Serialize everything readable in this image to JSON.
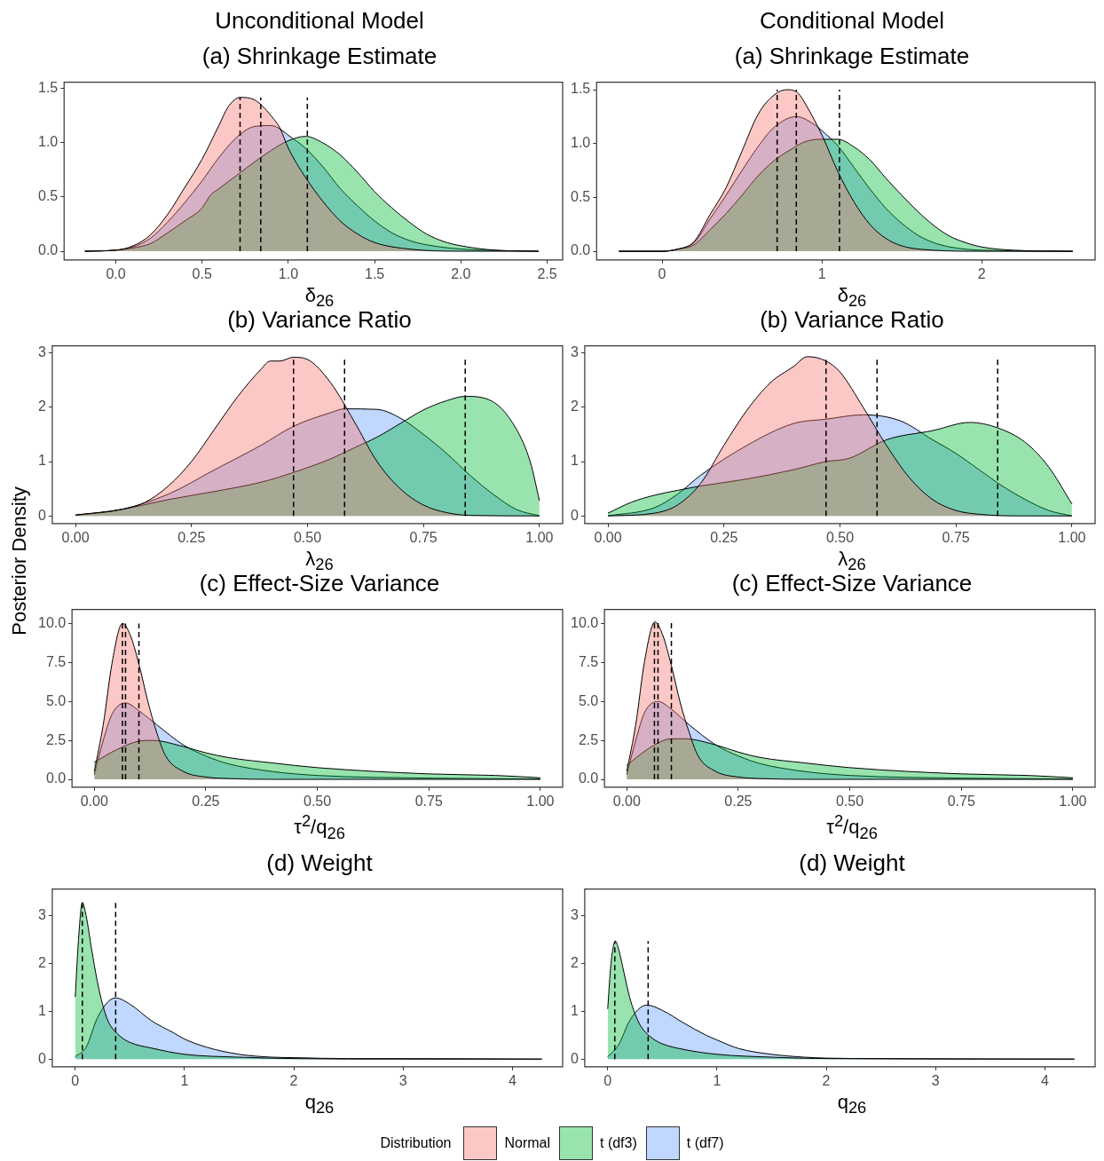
{
  "chart_data": [
    {
      "type": "area",
      "subtitle": "Unconditional Model",
      "title": "(a) Shrinkage Estimate",
      "xlabel": "δ$_{26}$",
      "legend": "bottom",
      "legend_title": "Distribution",
      "xlim": [
        -0.3,
        2.59
      ],
      "ylim": [
        -0.08,
        1.56
      ],
      "xticks": [
        {
          "value": 0,
          "label": "0.0"
        },
        0.5,
        {
          "value": 1,
          "label": "1.0"
        },
        1.5,
        {
          "value": 2,
          "label": "2.0"
        },
        2.5
      ],
      "yticks": [
        {
          "value": 0,
          "label": "0.0"
        },
        0.5,
        {
          "value": 1,
          "label": "1.0"
        },
        1.5
      ],
      "ref_lines": [
        {
          "axis": "x",
          "value": 0.72,
          "color": "#000000",
          "line_style": "dashed"
        },
        {
          "axis": "x",
          "value": 0.84,
          "color": "#000000",
          "line_style": "dashed"
        },
        {
          "axis": "x",
          "value": 1.11,
          "color": "#000000",
          "line_style": "dashed"
        }
      ],
      "series": [
        {
          "name": "Normal",
          "color": "#f8766d",
          "x": [
            -0.18,
            0,
            0.1,
            0.2,
            0.3,
            0.4,
            0.5,
            0.6,
            0.65,
            0.72,
            0.8,
            0.85,
            0.9,
            0.95,
            1.0,
            1.1,
            1.2,
            1.3,
            1.4,
            1.5,
            1.7,
            2.0,
            2.45
          ],
          "values": [
            0,
            0.01,
            0.05,
            0.15,
            0.34,
            0.59,
            0.85,
            1.17,
            1.33,
            1.42,
            1.4,
            1.34,
            1.25,
            1.14,
            0.95,
            0.68,
            0.46,
            0.28,
            0.16,
            0.08,
            0.02,
            0,
            0
          ]
        },
        {
          "name": "t (df3)",
          "color": "#00ba38",
          "x": [
            -0.18,
            0,
            0.1,
            0.2,
            0.3,
            0.4,
            0.5,
            0.55,
            0.6,
            0.7,
            0.8,
            0.9,
            1.0,
            1.1,
            1.2,
            1.3,
            1.4,
            1.5,
            1.6,
            1.7,
            1.8,
            1.9,
            2.0,
            2.2,
            2.45
          ],
          "values": [
            0,
            0.01,
            0.03,
            0.07,
            0.17,
            0.28,
            0.4,
            0.52,
            0.58,
            0.7,
            0.82,
            0.93,
            1.02,
            1.06,
            1.0,
            0.89,
            0.73,
            0.55,
            0.4,
            0.27,
            0.16,
            0.09,
            0.05,
            0.01,
            0
          ]
        },
        {
          "name": "t (df7)",
          "color": "#619cff",
          "x": [
            -0.18,
            0,
            0.1,
            0.2,
            0.3,
            0.4,
            0.5,
            0.6,
            0.7,
            0.8,
            0.9,
            0.95,
            1.0,
            1.1,
            1.2,
            1.3,
            1.4,
            1.5,
            1.6,
            1.7,
            1.8,
            2.0,
            2.45
          ],
          "values": [
            0,
            0.01,
            0.04,
            0.12,
            0.27,
            0.45,
            0.65,
            0.87,
            1.05,
            1.15,
            1.16,
            1.13,
            1.07,
            0.95,
            0.78,
            0.58,
            0.42,
            0.28,
            0.17,
            0.1,
            0.06,
            0.02,
            0
          ]
        }
      ]
    },
    {
      "type": "area",
      "subtitle": "Conditional Model",
      "title": "(a) Shrinkage Estimate",
      "xlabel": "δ$_{26}$",
      "xlim": [
        -0.41,
        2.71
      ],
      "ylim": [
        -0.08,
        1.57
      ],
      "xticks": [
        0,
        1,
        2
      ],
      "yticks": [
        {
          "value": 0,
          "label": "0.0"
        },
        0.5,
        {
          "value": 1,
          "label": "1.0"
        },
        1.5
      ],
      "ref_lines": [
        {
          "axis": "x",
          "value": 0.72,
          "color": "#000000",
          "line_style": "dashed"
        },
        {
          "axis": "x",
          "value": 0.84,
          "color": "#000000",
          "line_style": "dashed"
        },
        {
          "axis": "x",
          "value": 1.11,
          "color": "#000000",
          "line_style": "dashed"
        }
      ],
      "series": [
        {
          "color": "#f8766d",
          "x": [
            -0.27,
            0,
            0.1,
            0.2,
            0.3,
            0.4,
            0.5,
            0.6,
            0.7,
            0.78,
            0.85,
            0.9,
            1.0,
            1.1,
            1.2,
            1.3,
            1.4,
            1.5,
            1.7,
            2.0,
            2.57
          ],
          "values": [
            0,
            0,
            0.02,
            0.09,
            0.34,
            0.59,
            0.93,
            1.27,
            1.45,
            1.5,
            1.47,
            1.36,
            1.08,
            0.74,
            0.46,
            0.25,
            0.12,
            0.05,
            0.01,
            0,
            0
          ]
        },
        {
          "color": "#00ba38",
          "x": [
            -0.27,
            0,
            0.1,
            0.2,
            0.3,
            0.4,
            0.5,
            0.6,
            0.7,
            0.8,
            0.9,
            1.0,
            1.1,
            1.2,
            1.3,
            1.4,
            1.5,
            1.6,
            1.7,
            1.8,
            1.9,
            2.0,
            2.2,
            2.57
          ],
          "values": [
            0,
            0,
            0.02,
            0.06,
            0.2,
            0.35,
            0.52,
            0.7,
            0.84,
            0.94,
            1.02,
            1.04,
            1.04,
            0.97,
            0.85,
            0.68,
            0.52,
            0.37,
            0.24,
            0.14,
            0.08,
            0.04,
            0.01,
            0
          ]
        },
        {
          "color": "#619cff",
          "x": [
            -0.27,
            0,
            0.1,
            0.2,
            0.3,
            0.4,
            0.5,
            0.6,
            0.7,
            0.84,
            0.95,
            1.0,
            1.1,
            1.2,
            1.3,
            1.4,
            1.5,
            1.6,
            1.7,
            1.8,
            2.0,
            2.57
          ],
          "values": [
            0,
            0,
            0.02,
            0.08,
            0.3,
            0.52,
            0.75,
            0.97,
            1.15,
            1.25,
            1.18,
            1.12,
            0.98,
            0.78,
            0.58,
            0.4,
            0.26,
            0.15,
            0.08,
            0.04,
            0.01,
            0
          ]
        }
      ]
    },
    {
      "type": "area",
      "title": "(b) Variance Ratio",
      "xlabel": "λ$_{26}$",
      "xlim": [
        -0.05,
        1.05
      ],
      "ylim": [
        -0.14,
        3.13
      ],
      "xticks": [
        {
          "value": 0,
          "label": "0.00"
        },
        0.25,
        {
          "value": 0.5,
          "label": "0.50"
        },
        0.75,
        {
          "value": 1,
          "label": "1.00"
        }
      ],
      "yticks": [
        0,
        1,
        2,
        3
      ],
      "ref_lines": [
        {
          "axis": "x",
          "value": 0.47,
          "color": "#000000",
          "line_style": "dashed"
        },
        {
          "axis": "x",
          "value": 0.58,
          "color": "#000000",
          "line_style": "dashed"
        },
        {
          "axis": "x",
          "value": 0.84,
          "color": "#000000",
          "line_style": "dashed"
        }
      ],
      "series": [
        {
          "color": "#f8766d",
          "x": [
            0,
            0.1,
            0.15,
            0.2,
            0.25,
            0.3,
            0.35,
            0.4,
            0.42,
            0.44,
            0.47,
            0.5,
            0.55,
            0.6,
            0.65,
            0.7,
            0.75,
            0.8,
            0.85,
            1.0
          ],
          "values": [
            0.02,
            0.12,
            0.25,
            0.55,
            1.0,
            1.6,
            2.2,
            2.7,
            2.85,
            2.85,
            2.92,
            2.88,
            2.45,
            1.75,
            1.0,
            0.5,
            0.2,
            0.06,
            0.01,
            0
          ]
        },
        {
          "color": "#00ba38",
          "x": [
            0,
            0.1,
            0.2,
            0.3,
            0.4,
            0.47,
            0.55,
            0.6,
            0.65,
            0.7,
            0.75,
            0.8,
            0.84,
            0.9,
            0.95,
            0.98,
            1.0
          ],
          "values": [
            0.01,
            0.12,
            0.3,
            0.45,
            0.62,
            0.8,
            1.05,
            1.25,
            1.45,
            1.7,
            1.95,
            2.12,
            2.2,
            2.1,
            1.6,
            1.0,
            0.28
          ]
        },
        {
          "color": "#619cff",
          "x": [
            0,
            0.1,
            0.2,
            0.3,
            0.4,
            0.47,
            0.55,
            0.58,
            0.65,
            0.7,
            0.75,
            0.8,
            0.85,
            0.9,
            0.95,
            1.0
          ],
          "values": [
            0.01,
            0.12,
            0.4,
            0.85,
            1.3,
            1.65,
            1.9,
            1.97,
            1.96,
            1.8,
            1.5,
            1.15,
            0.75,
            0.4,
            0.12,
            0
          ]
        }
      ]
    },
    {
      "type": "area",
      "title": "(b) Variance Ratio",
      "xlabel": "λ$_{26}$",
      "xlim": [
        -0.05,
        1.05
      ],
      "ylim": [
        -0.14,
        3.13
      ],
      "xticks": [
        {
          "value": 0,
          "label": "0.00"
        },
        0.25,
        {
          "value": 0.5,
          "label": "0.50"
        },
        0.75,
        {
          "value": 1,
          "label": "1.00"
        }
      ],
      "yticks": [
        0,
        1,
        2,
        3
      ],
      "ref_lines": [
        {
          "axis": "x",
          "value": 0.47,
          "color": "#000000",
          "line_style": "dashed"
        },
        {
          "axis": "x",
          "value": 0.58,
          "color": "#000000",
          "line_style": "dashed"
        },
        {
          "axis": "x",
          "value": 0.84,
          "color": "#000000",
          "line_style": "dashed"
        }
      ],
      "series": [
        {
          "color": "#f8766d",
          "x": [
            0,
            0.1,
            0.15,
            0.2,
            0.25,
            0.3,
            0.35,
            0.4,
            0.43,
            0.47,
            0.5,
            0.55,
            0.6,
            0.65,
            0.7,
            0.75,
            0.8,
            0.9,
            1.0
          ],
          "values": [
            0,
            0.05,
            0.2,
            0.6,
            1.3,
            1.95,
            2.45,
            2.75,
            2.93,
            2.85,
            2.65,
            2.0,
            1.3,
            0.7,
            0.3,
            0.1,
            0.03,
            0,
            0
          ]
        },
        {
          "color": "#00ba38",
          "x": [
            0,
            0.05,
            0.1,
            0.15,
            0.2,
            0.3,
            0.4,
            0.47,
            0.52,
            0.6,
            0.7,
            0.78,
            0.84,
            0.9,
            0.95,
            1.0
          ],
          "values": [
            0.05,
            0.25,
            0.38,
            0.47,
            0.55,
            0.68,
            0.85,
            1.0,
            1.06,
            1.4,
            1.57,
            1.72,
            1.62,
            1.35,
            0.9,
            0.22
          ]
        },
        {
          "color": "#619cff",
          "x": [
            0,
            0.1,
            0.15,
            0.2,
            0.3,
            0.4,
            0.47,
            0.55,
            0.63,
            0.7,
            0.75,
            0.8,
            0.85,
            0.9,
            0.95,
            1.0
          ],
          "values": [
            0,
            0.15,
            0.4,
            0.75,
            1.3,
            1.7,
            1.78,
            1.86,
            1.75,
            1.4,
            1.15,
            0.85,
            0.55,
            0.3,
            0.1,
            0
          ]
        }
      ]
    },
    {
      "type": "area",
      "title": "(c) Effect-Size Variance",
      "xlabel": "τ$^{2}$/q$_{26}$",
      "ylabel": "Posterior Density",
      "xlim": [
        -0.05,
        1.05
      ],
      "ylim": [
        -0.5,
        10.9
      ],
      "xticks": [
        {
          "value": 0,
          "label": "0.00"
        },
        0.25,
        {
          "value": 0.5,
          "label": "0.50"
        },
        0.75,
        {
          "value": 1,
          "label": "1.00"
        }
      ],
      "yticks": [
        {
          "value": 0,
          "label": "0.0"
        },
        2.5,
        {
          "value": 5,
          "label": "5.0"
        },
        7.5,
        {
          "value": 10,
          "label": "10.0"
        }
      ],
      "ref_lines": [
        {
          "axis": "x",
          "value": 0.063,
          "color": "#000000",
          "line_style": "dashed"
        },
        {
          "axis": "x",
          "value": 0.07,
          "color": "#000000",
          "line_style": "dashed"
        },
        {
          "axis": "x",
          "value": 0.1,
          "color": "#000000",
          "line_style": "dashed"
        }
      ],
      "series": [
        {
          "color": "#f8766d",
          "x": [
            0,
            0.02,
            0.04,
            0.063,
            0.08,
            0.1,
            0.12,
            0.14,
            0.16,
            0.2,
            0.25,
            0.3,
            0.4,
            1.0
          ],
          "values": [
            0.5,
            3.5,
            7.5,
            10.0,
            9.3,
            7.4,
            5.0,
            3.0,
            1.5,
            0.5,
            0.15,
            0.05,
            0,
            0
          ]
        },
        {
          "color": "#00ba38",
          "x": [
            0,
            0.05,
            0.1,
            0.13,
            0.2,
            0.25,
            0.3,
            0.4,
            0.5,
            0.75,
            0.9,
            1.0
          ],
          "values": [
            1.1,
            1.9,
            2.45,
            2.5,
            2.1,
            1.7,
            1.4,
            1.05,
            0.75,
            0.35,
            0.25,
            0.1
          ]
        },
        {
          "color": "#619cff",
          "x": [
            0,
            0.02,
            0.04,
            0.07,
            0.1,
            0.14,
            0.2,
            0.25,
            0.3,
            0.4,
            0.5,
            0.75,
            1.0
          ],
          "values": [
            0.3,
            2.5,
            4.2,
            4.9,
            4.4,
            3.5,
            2.2,
            1.5,
            1.0,
            0.5,
            0.25,
            0.08,
            0.02
          ]
        }
      ]
    },
    {
      "type": "area",
      "title": "(c) Effect-Size Variance",
      "xlabel": "τ$^{2}$/q$_{26}$",
      "xlim": [
        -0.05,
        1.05
      ],
      "ylim": [
        -0.5,
        10.9
      ],
      "xticks": [
        {
          "value": 0,
          "label": "0.00"
        },
        0.25,
        {
          "value": 0.5,
          "label": "0.50"
        },
        0.75,
        {
          "value": 1,
          "label": "1.00"
        }
      ],
      "yticks": [
        {
          "value": 0,
          "label": "0.0"
        },
        2.5,
        {
          "value": 5,
          "label": "5.0"
        },
        7.5,
        {
          "value": 10,
          "label": "10.0"
        }
      ],
      "ref_lines": [
        {
          "axis": "x",
          "value": 0.062,
          "color": "#000000",
          "line_style": "dashed"
        },
        {
          "axis": "x",
          "value": 0.07,
          "color": "#000000",
          "line_style": "dashed"
        },
        {
          "axis": "x",
          "value": 0.1,
          "color": "#000000",
          "line_style": "dashed"
        }
      ],
      "series": [
        {
          "color": "#f8766d",
          "x": [
            0,
            0.02,
            0.04,
            0.063,
            0.08,
            0.1,
            0.12,
            0.14,
            0.16,
            0.2,
            0.25,
            0.3,
            0.4,
            1.0
          ],
          "values": [
            0.5,
            3.5,
            7.6,
            10.1,
            9.3,
            7.3,
            4.9,
            3.0,
            1.5,
            0.5,
            0.15,
            0.05,
            0,
            0
          ]
        },
        {
          "color": "#00ba38",
          "x": [
            0,
            0.05,
            0.1,
            0.13,
            0.2,
            0.25,
            0.3,
            0.4,
            0.5,
            0.75,
            0.9,
            1.0
          ],
          "values": [
            0.9,
            2.0,
            2.6,
            2.6,
            2.2,
            1.75,
            1.4,
            1.05,
            0.75,
            0.35,
            0.25,
            0.1
          ]
        },
        {
          "color": "#619cff",
          "x": [
            0,
            0.02,
            0.04,
            0.07,
            0.1,
            0.14,
            0.2,
            0.25,
            0.3,
            0.4,
            0.5,
            0.75,
            1.0
          ],
          "values": [
            0.3,
            2.5,
            4.3,
            5.0,
            4.5,
            3.5,
            2.2,
            1.5,
            1.0,
            0.5,
            0.25,
            0.08,
            0.02
          ]
        }
      ]
    },
    {
      "type": "area",
      "title": "(d) Weight",
      "xlabel": "q$_{26}$",
      "xlim": [
        -0.21,
        4.46
      ],
      "ylim": [
        -0.16,
        3.56
      ],
      "xticks": [
        0,
        1,
        2,
        3,
        4
      ],
      "yticks": [
        0,
        1,
        2,
        3
      ],
      "ref_lines": [
        {
          "axis": "x",
          "value": 0.065,
          "color": "#000000",
          "line_style": "dashed"
        },
        {
          "axis": "x",
          "value": 0.37,
          "color": "#000000",
          "line_style": "dashed"
        }
      ],
      "series": [
        {
          "color": "#00ba38",
          "x": [
            0,
            0.03,
            0.065,
            0.1,
            0.15,
            0.2,
            0.25,
            0.3,
            0.4,
            0.5,
            0.7,
            1.0,
            1.5,
            2.0,
            3.0,
            4.27
          ],
          "values": [
            1.3,
            2.5,
            3.28,
            3.0,
            2.3,
            1.65,
            1.15,
            0.8,
            0.5,
            0.35,
            0.23,
            0.1,
            0.04,
            0.01,
            0,
            0
          ]
        },
        {
          "color": "#619cff",
          "x": [
            0,
            0.1,
            0.2,
            0.3,
            0.37,
            0.5,
            0.7,
            0.9,
            1.0,
            1.2,
            1.5,
            1.8,
            2.0,
            2.5,
            3.0,
            4.27
          ],
          "values": [
            0.05,
            0.25,
            0.85,
            1.2,
            1.28,
            1.15,
            0.8,
            0.55,
            0.42,
            0.25,
            0.1,
            0.04,
            0.03,
            0.01,
            0.01,
            0
          ]
        }
      ]
    },
    {
      "type": "area",
      "title": "(d) Weight",
      "xlabel": "q$_{26}$",
      "xlim": [
        -0.21,
        4.46
      ],
      "ylim": [
        -0.16,
        3.56
      ],
      "xticks": [
        0,
        1,
        2,
        3,
        4
      ],
      "yticks": [
        0,
        1,
        2,
        3
      ],
      "ref_lines": [
        {
          "axis": "x",
          "value": 0.065,
          "color": "#000000",
          "line_style": "dashed"
        },
        {
          "axis": "x",
          "value": 0.37,
          "color": "#000000",
          "line_style": "dashed"
        }
      ],
      "series": [
        {
          "color": "#00ba38",
          "x": [
            0,
            0.03,
            0.07,
            0.1,
            0.15,
            0.2,
            0.25,
            0.3,
            0.4,
            0.5,
            0.7,
            1.0,
            1.5,
            2.0,
            4.27
          ],
          "values": [
            1.05,
            2.0,
            2.47,
            2.3,
            1.8,
            1.3,
            0.95,
            0.7,
            0.45,
            0.32,
            0.2,
            0.1,
            0.04,
            0.01,
            0
          ]
        },
        {
          "color": "#619cff",
          "x": [
            0,
            0.1,
            0.2,
            0.3,
            0.36,
            0.5,
            0.7,
            0.9,
            1.0,
            1.2,
            1.5,
            1.8,
            2.0,
            2.5,
            4.27
          ],
          "values": [
            0.05,
            0.3,
            0.8,
            1.08,
            1.13,
            1.02,
            0.75,
            0.5,
            0.4,
            0.22,
            0.1,
            0.04,
            0.02,
            0.01,
            0
          ]
        }
      ]
    }
  ]
}
